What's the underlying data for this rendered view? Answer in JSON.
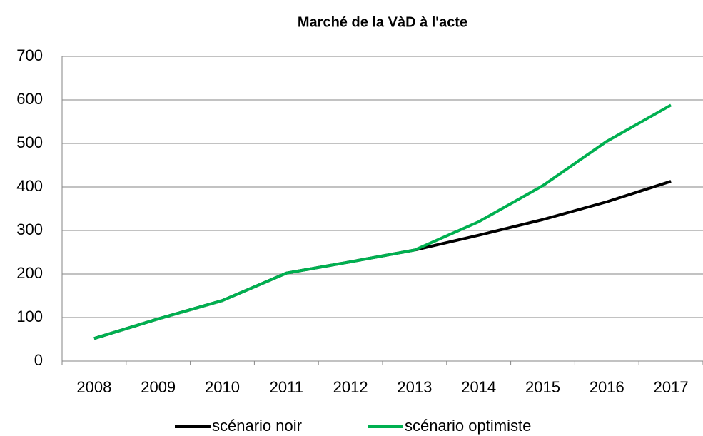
{
  "chart_data": {
    "type": "line",
    "title": "Marché de la VàD à l'acte",
    "categories": [
      "2008",
      "2009",
      "2010",
      "2011",
      "2012",
      "2013",
      "2014",
      "2015",
      "2016",
      "2017"
    ],
    "series": [
      {
        "name": "scénario noir",
        "color": "#000000",
        "values": [
          52,
          97,
          139,
          202,
          228,
          255,
          289,
          325,
          366,
          413
        ]
      },
      {
        "name": "scénario optimiste",
        "color": "#00b050",
        "values": [
          52,
          97,
          139,
          202,
          228,
          255,
          320,
          403,
          505,
          588
        ]
      }
    ],
    "ylim": [
      0,
      700
    ],
    "yticks": [
      0,
      100,
      200,
      300,
      400,
      500,
      600,
      700
    ],
    "grid": true,
    "legend": "bottom"
  }
}
